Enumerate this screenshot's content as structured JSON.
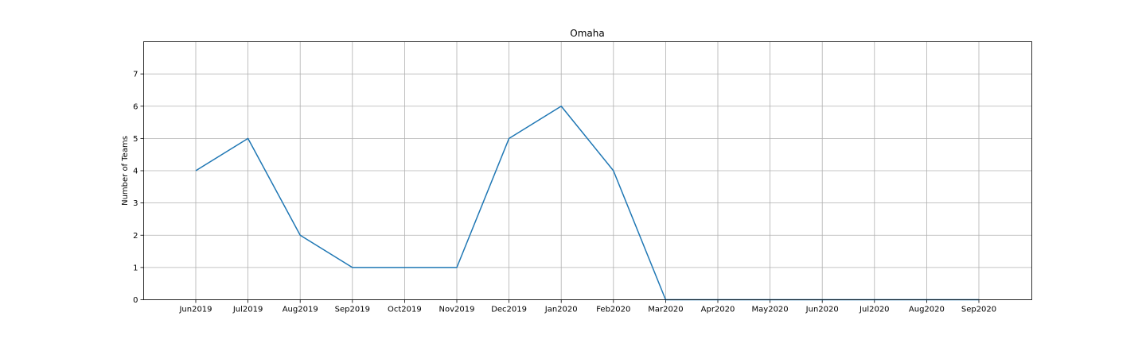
{
  "chart_data": {
    "type": "line",
    "title": "Omaha",
    "xlabel": "",
    "ylabel": "Number of Teams",
    "categories": [
      "Jun2019",
      "Jul2019",
      "Aug2019",
      "Sep2019",
      "Oct2019",
      "Nov2019",
      "Dec2019",
      "Jan2020",
      "Feb2020",
      "Mar2020",
      "Apr2020",
      "May2020",
      "Jun2020",
      "Jul2020",
      "Aug2020",
      "Sep2020"
    ],
    "series": [
      {
        "values": [
          4,
          5,
          2,
          1,
          1,
          1,
          5,
          6,
          4,
          0,
          0,
          0,
          0,
          0,
          0,
          0
        ],
        "color": "#1f77b4"
      }
    ],
    "yticks": [
      0,
      1,
      2,
      3,
      4,
      5,
      6,
      7
    ],
    "ylim": [
      0,
      8
    ],
    "grid": true,
    "legend": "none"
  }
}
